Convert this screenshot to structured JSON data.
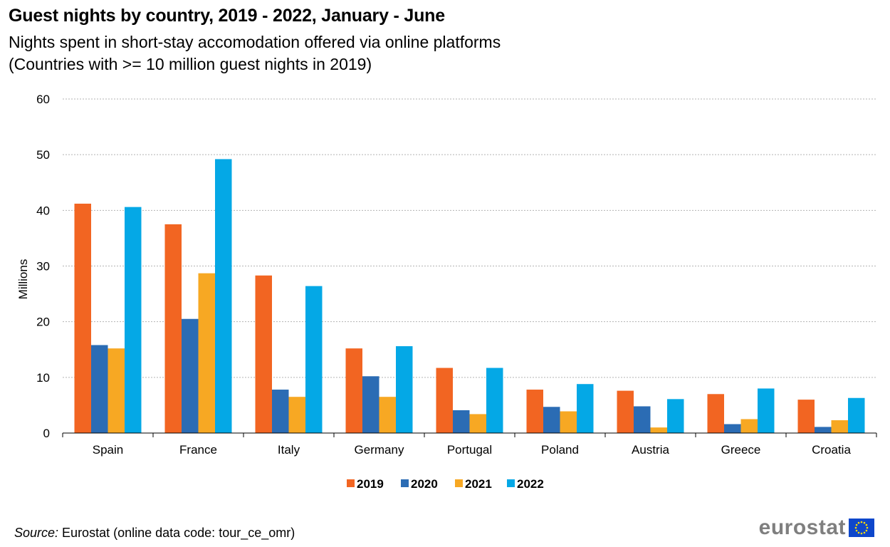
{
  "title": "Guest nights by country, 2019 - 2022, January - June",
  "subtitle_line1": "Nights spent in short-stay accomodation offered via online platforms",
  "subtitle_line2": "(Countries with >= 10 million guest nights in 2019)",
  "source": {
    "label": "Source:",
    "text": " Eurostat (online data code: tour_ce_omr)"
  },
  "brand": {
    "text": "eurostat",
    "flag_icon": "eu-flag-icon"
  },
  "colors": {
    "2019": "#f26522",
    "2020": "#2b6cb4",
    "2021": "#f7a823",
    "2022": "#04a8e6",
    "grid": "#b3b3b3",
    "brand_grey": "#7f7f7f",
    "eu_blue": "#0e47cb"
  },
  "chart_data": {
    "type": "bar",
    "categories": [
      "Spain",
      "France",
      "Italy",
      "Germany",
      "Portugal",
      "Poland",
      "Austria",
      "Greece",
      "Croatia"
    ],
    "series": [
      {
        "name": "2019",
        "values": [
          41.2,
          37.5,
          28.3,
          15.2,
          11.7,
          7.8,
          7.6,
          7.0,
          6.0
        ]
      },
      {
        "name": "2020",
        "values": [
          15.8,
          20.5,
          7.8,
          10.2,
          4.1,
          4.7,
          4.8,
          1.6,
          1.1
        ]
      },
      {
        "name": "2021",
        "values": [
          15.2,
          28.7,
          6.5,
          6.5,
          3.4,
          3.9,
          1.0,
          2.5,
          2.3
        ]
      },
      {
        "name": "2022",
        "values": [
          40.6,
          49.2,
          26.4,
          15.6,
          11.7,
          8.8,
          6.1,
          8.0,
          6.3
        ]
      }
    ],
    "ylabel": "Millions",
    "xlabel": "",
    "ylim": [
      0,
      60
    ],
    "yticks": [
      0,
      10,
      20,
      30,
      40,
      50,
      60
    ],
    "grid": true,
    "legend_position": "bottom"
  }
}
